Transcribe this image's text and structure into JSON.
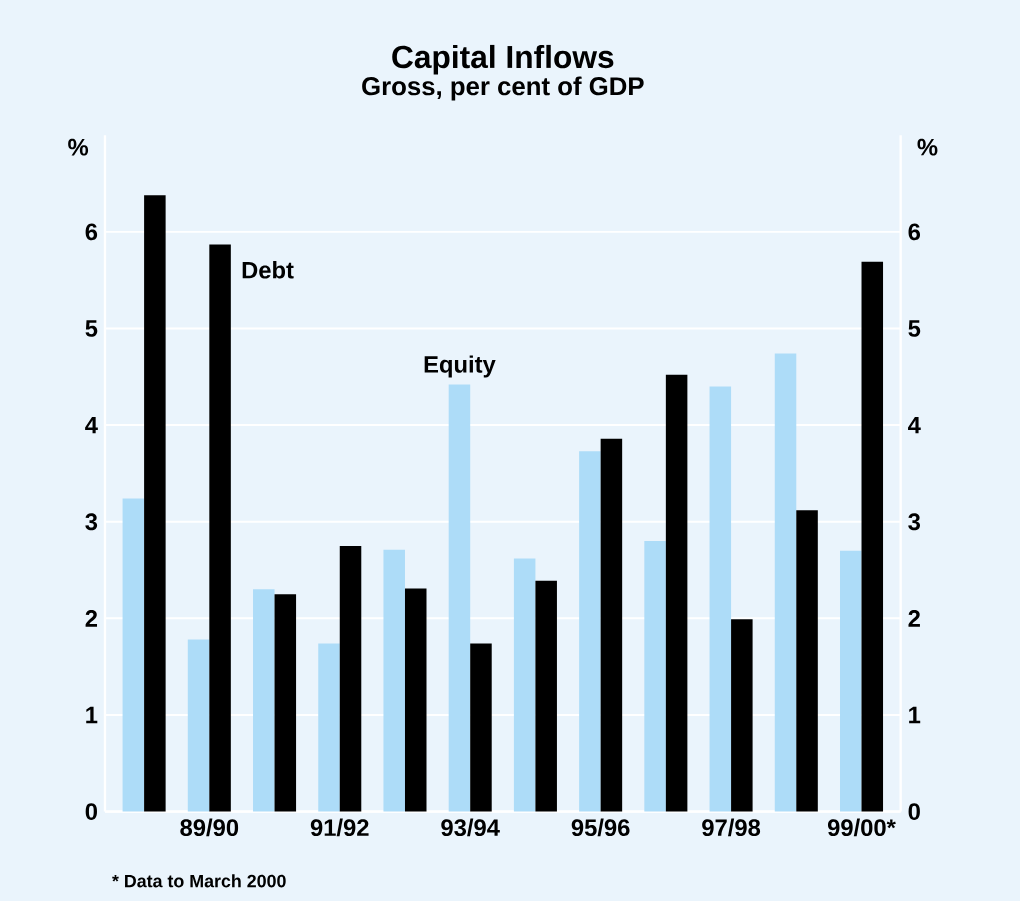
{
  "chart_data": {
    "type": "bar",
    "title": "Capital Inflows",
    "subtitle": "Gross, per cent of GDP",
    "ylabel": "%",
    "y2label": "%",
    "categories": [
      null,
      "89/90",
      null,
      "91/92",
      null,
      "93/94",
      null,
      "95/96",
      null,
      "97/98",
      null,
      "99/00*"
    ],
    "series": [
      {
        "name": "Equity",
        "color": "#addcf8",
        "values": [
          3.24,
          1.78,
          2.3,
          1.74,
          2.71,
          4.42,
          2.62,
          3.73,
          2.8,
          4.4,
          4.74,
          2.7
        ]
      },
      {
        "name": "Debt",
        "color": "#000000",
        "values": [
          6.38,
          5.87,
          2.25,
          2.75,
          2.31,
          1.74,
          2.39,
          3.86,
          4.52,
          1.99,
          3.12,
          5.69
        ]
      }
    ],
    "ylim": [
      0,
      7
    ],
    "yticks": [
      0,
      1,
      2,
      3,
      4,
      5,
      6
    ],
    "y2lim": [
      0,
      7
    ],
    "y2ticks": [
      0,
      1,
      2,
      3,
      4,
      5,
      6
    ],
    "grid": "y",
    "annotations": [
      "* Data to March 2000"
    ]
  }
}
